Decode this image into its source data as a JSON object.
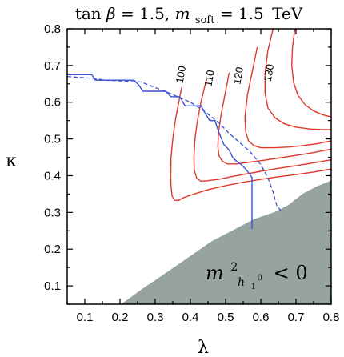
{
  "chart_data": {
    "type": "line",
    "title": "tan β = 1.5,  m_soft = 1.5 TeV",
    "title_parts": {
      "tan": "tan",
      "beta": "β",
      "eq1": " = 1.5,  ",
      "m": "m",
      "soft": "soft",
      "eq2": " = 1.5",
      "unit": "TeV"
    },
    "xlabel": "λ",
    "ylabel": "κ",
    "xlim": [
      0.05,
      0.8
    ],
    "ylim": [
      0.05,
      0.8
    ],
    "xticks": [
      0.1,
      0.2,
      0.3,
      0.4,
      0.5,
      0.6,
      0.7,
      0.8
    ],
    "yticks": [
      0.1,
      0.2,
      0.3,
      0.4,
      0.5,
      0.6,
      0.7,
      0.8
    ],
    "grid": false,
    "colors": {
      "contours": "#e0392a",
      "boundary": "#3a4fd4",
      "excluded": "#96a39f"
    },
    "excluded_region": {
      "label_parts": {
        "m": "m",
        "sup": "2",
        "h": "h",
        "hsub": "1",
        "hsub_sup": "0",
        "rest": " < 0"
      },
      "boundary": [
        [
          0.205,
          0.05
        ],
        [
          0.27,
          0.095
        ],
        [
          0.34,
          0.14
        ],
        [
          0.4,
          0.18
        ],
        [
          0.46,
          0.22
        ],
        [
          0.52,
          0.25
        ],
        [
          0.58,
          0.28
        ],
        [
          0.64,
          0.3
        ],
        [
          0.68,
          0.32
        ],
        [
          0.72,
          0.35
        ],
        [
          0.76,
          0.37
        ],
        [
          0.8,
          0.385
        ]
      ]
    },
    "solid_boundary": [
      [
        0.05,
        0.675
      ],
      [
        0.12,
        0.675
      ],
      [
        0.13,
        0.66
      ],
      [
        0.24,
        0.66
      ],
      [
        0.255,
        0.645
      ],
      [
        0.265,
        0.63
      ],
      [
        0.33,
        0.63
      ],
      [
        0.345,
        0.615
      ],
      [
        0.37,
        0.615
      ],
      [
        0.385,
        0.59
      ],
      [
        0.43,
        0.59
      ],
      [
        0.445,
        0.565
      ],
      [
        0.455,
        0.55
      ],
      [
        0.47,
        0.55
      ],
      [
        0.48,
        0.52
      ],
      [
        0.495,
        0.485
      ],
      [
        0.51,
        0.47
      ],
      [
        0.52,
        0.45
      ],
      [
        0.53,
        0.44
      ],
      [
        0.545,
        0.43
      ],
      [
        0.56,
        0.415
      ],
      [
        0.575,
        0.395
      ],
      [
        0.575,
        0.385
      ],
      [
        0.575,
        0.255
      ]
    ],
    "dashed_boundary": [
      [
        0.05,
        0.67
      ],
      [
        0.12,
        0.665
      ],
      [
        0.16,
        0.66
      ],
      [
        0.26,
        0.655
      ],
      [
        0.34,
        0.625
      ],
      [
        0.4,
        0.6
      ],
      [
        0.44,
        0.575
      ],
      [
        0.48,
        0.545
      ],
      [
        0.51,
        0.515
      ],
      [
        0.54,
        0.49
      ],
      [
        0.57,
        0.465
      ],
      [
        0.6,
        0.43
      ],
      [
        0.62,
        0.395
      ],
      [
        0.635,
        0.355
      ],
      [
        0.645,
        0.32
      ],
      [
        0.66,
        0.3
      ]
    ],
    "contours": [
      {
        "label": "100",
        "label_at": [
          0.375,
          0.675
        ],
        "points": [
          [
            0.375,
            0.64
          ],
          [
            0.367,
            0.6
          ],
          [
            0.357,
            0.55
          ],
          [
            0.35,
            0.5
          ],
          [
            0.345,
            0.45
          ],
          [
            0.344,
            0.4
          ],
          [
            0.345,
            0.37
          ],
          [
            0.348,
            0.345
          ],
          [
            0.355,
            0.333
          ],
          [
            0.367,
            0.333
          ],
          [
            0.38,
            0.34
          ],
          [
            0.41,
            0.35
          ],
          [
            0.45,
            0.362
          ],
          [
            0.5,
            0.373
          ],
          [
            0.55,
            0.382
          ],
          [
            0.6,
            0.39
          ],
          [
            0.65,
            0.397
          ],
          [
            0.7,
            0.403
          ],
          [
            0.75,
            0.41
          ],
          [
            0.8,
            0.418
          ]
        ]
      },
      {
        "label": "110",
        "label_at": [
          0.456,
          0.665
        ],
        "points": [
          [
            0.445,
            0.66
          ],
          [
            0.43,
            0.6
          ],
          [
            0.42,
            0.55
          ],
          [
            0.413,
            0.5
          ],
          [
            0.41,
            0.45
          ],
          [
            0.411,
            0.415
          ],
          [
            0.418,
            0.393
          ],
          [
            0.43,
            0.385
          ],
          [
            0.445,
            0.386
          ],
          [
            0.48,
            0.39
          ],
          [
            0.52,
            0.398
          ],
          [
            0.56,
            0.405
          ],
          [
            0.6,
            0.412
          ],
          [
            0.65,
            0.42
          ],
          [
            0.7,
            0.427
          ],
          [
            0.75,
            0.435
          ],
          [
            0.8,
            0.443
          ]
        ]
      },
      {
        "label": "120",
        "label_at": [
          0.538,
          0.672
        ],
        "points": [
          [
            0.51,
            0.68
          ],
          [
            0.5,
            0.63
          ],
          [
            0.488,
            0.57
          ],
          [
            0.48,
            0.52
          ],
          [
            0.478,
            0.48
          ],
          [
            0.481,
            0.455
          ],
          [
            0.49,
            0.44
          ],
          [
            0.505,
            0.432
          ],
          [
            0.53,
            0.432
          ],
          [
            0.57,
            0.437
          ],
          [
            0.61,
            0.442
          ],
          [
            0.65,
            0.448
          ],
          [
            0.7,
            0.455
          ],
          [
            0.75,
            0.463
          ],
          [
            0.8,
            0.472
          ]
        ]
      },
      {
        "label": "130",
        "label_at": [
          0.625,
          0.68
        ],
        "points": [
          [
            0.59,
            0.75
          ],
          [
            0.575,
            0.68
          ],
          [
            0.562,
            0.62
          ],
          [
            0.555,
            0.56
          ],
          [
            0.557,
            0.52
          ],
          [
            0.565,
            0.495
          ],
          [
            0.58,
            0.482
          ],
          [
            0.6,
            0.476
          ],
          [
            0.64,
            0.476
          ],
          [
            0.68,
            0.478
          ],
          [
            0.72,
            0.482
          ],
          [
            0.76,
            0.487
          ],
          [
            0.8,
            0.495
          ]
        ]
      },
      {
        "label": "",
        "label_at": null,
        "points": [
          [
            0.635,
            0.8
          ],
          [
            0.62,
            0.74
          ],
          [
            0.612,
            0.68
          ],
          [
            0.612,
            0.625
          ],
          [
            0.62,
            0.585
          ],
          [
            0.64,
            0.558
          ],
          [
            0.665,
            0.542
          ],
          [
            0.7,
            0.532
          ],
          [
            0.74,
            0.527
          ],
          [
            0.78,
            0.525
          ],
          [
            0.8,
            0.525
          ]
        ]
      },
      {
        "label": "",
        "label_at": null,
        "points": [
          [
            0.697,
            0.8
          ],
          [
            0.69,
            0.75
          ],
          [
            0.688,
            0.7
          ],
          [
            0.693,
            0.655
          ],
          [
            0.705,
            0.62
          ],
          [
            0.725,
            0.594
          ],
          [
            0.75,
            0.576
          ],
          [
            0.775,
            0.566
          ],
          [
            0.8,
            0.56
          ]
        ]
      }
    ]
  }
}
